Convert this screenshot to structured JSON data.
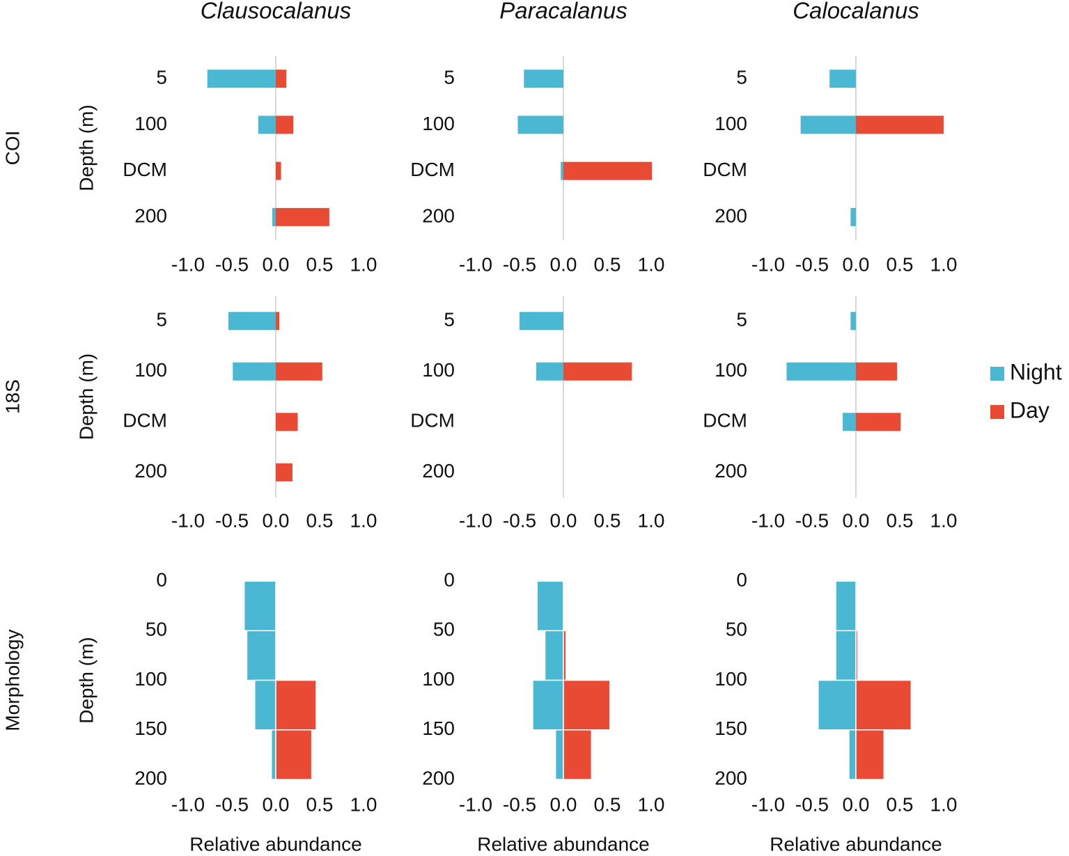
{
  "column_titles": [
    "Clausocalanus",
    "Paracalanus",
    "Calocalanus"
  ],
  "chart_data": [
    {
      "type": "bar",
      "row_label": "COI",
      "ylabel": "Depth (m)",
      "categories": [
        "5",
        "100",
        "DCM",
        "200"
      ],
      "series": [
        {
          "name": "Night",
          "color": "#4ab8d3",
          "values": [
            -0.78,
            -0.2,
            0,
            -0.04
          ]
        },
        {
          "name": "Day",
          "color": "#e84a33",
          "values": [
            0.12,
            0.2,
            0.06,
            0.61
          ]
        }
      ],
      "xlim": [
        -1,
        1
      ],
      "xticks": [
        {
          "value": -1,
          "label": "-1.0"
        },
        {
          "value": -0.5,
          "label": "-0.5"
        },
        {
          "value": 0,
          "label": "0.0"
        },
        0.5,
        {
          "value": 1,
          "label": "1.0"
        }
      ]
    },
    {
      "type": "bar",
      "categories": [
        "5",
        "100",
        "DCM",
        "200"
      ],
      "series": [
        {
          "name": "Night",
          "color": "#4ab8d3",
          "values": [
            -0.45,
            -0.52,
            -0.03,
            0
          ]
        },
        {
          "name": "Day",
          "color": "#e84a33",
          "values": [
            0,
            0,
            1.01,
            0
          ]
        }
      ],
      "xlim": [
        -1,
        1
      ],
      "xticks": [
        {
          "value": -1,
          "label": "-1.0"
        },
        {
          "value": -0.5,
          "label": "-0.5"
        },
        {
          "value": 0,
          "label": "0.0"
        },
        0.5,
        {
          "value": 1,
          "label": "1.0"
        }
      ]
    },
    {
      "type": "bar",
      "categories": [
        "5",
        "100",
        "DCM",
        "200"
      ],
      "series": [
        {
          "name": "Night",
          "color": "#4ab8d3",
          "values": [
            -0.3,
            -0.63,
            0,
            -0.06
          ]
        },
        {
          "name": "Day",
          "color": "#e84a33",
          "values": [
            0,
            1.0,
            0,
            0
          ]
        }
      ],
      "xlim": [
        -1,
        1
      ],
      "xticks": [
        {
          "value": -1,
          "label": "-1.0"
        },
        {
          "value": -0.5,
          "label": "-0.5"
        },
        {
          "value": 0,
          "label": "0.0"
        },
        0.5,
        {
          "value": 1,
          "label": "1.0"
        }
      ]
    },
    {
      "type": "bar",
      "row_label": "18S",
      "ylabel": "Depth (m)",
      "categories": [
        "5",
        "100",
        "DCM",
        "200"
      ],
      "series": [
        {
          "name": "Night",
          "color": "#4ab8d3",
          "values": [
            -0.54,
            -0.49,
            0,
            0
          ]
        },
        {
          "name": "Day",
          "color": "#e84a33",
          "values": [
            0.04,
            0.53,
            0.25,
            0.19
          ]
        }
      ],
      "xlim": [
        -1,
        1
      ],
      "xticks": [
        {
          "value": -1,
          "label": "-1.0"
        },
        {
          "value": -0.5,
          "label": "-0.5"
        },
        {
          "value": 0,
          "label": "0.0"
        },
        0.5,
        {
          "value": 1,
          "label": "1.0"
        }
      ]
    },
    {
      "type": "bar",
      "categories": [
        "5",
        "100",
        "DCM",
        "200"
      ],
      "series": [
        {
          "name": "Night",
          "color": "#4ab8d3",
          "values": [
            -0.5,
            -0.31,
            0,
            0
          ]
        },
        {
          "name": "Day",
          "color": "#e84a33",
          "values": [
            0,
            0.78,
            0,
            0
          ]
        }
      ],
      "xlim": [
        -1,
        1
      ],
      "xticks": [
        {
          "value": -1,
          "label": "-1.0"
        },
        {
          "value": -0.5,
          "label": "-0.5"
        },
        {
          "value": 0,
          "label": "0.0"
        },
        0.5,
        {
          "value": 1,
          "label": "1.0"
        }
      ]
    },
    {
      "type": "bar",
      "categories": [
        "5",
        "100",
        "DCM",
        "200"
      ],
      "series": [
        {
          "name": "Night",
          "color": "#4ab8d3",
          "values": [
            -0.06,
            -0.79,
            -0.15,
            0
          ]
        },
        {
          "name": "Day",
          "color": "#e84a33",
          "values": [
            0,
            0.47,
            0.51,
            0
          ]
        }
      ],
      "xlim": [
        -1,
        1
      ],
      "xticks": [
        {
          "value": -1,
          "label": "-1.0"
        },
        {
          "value": -0.5,
          "label": "-0.5"
        },
        {
          "value": 0,
          "label": "0.0"
        },
        0.5,
        {
          "value": 1,
          "label": "1.0"
        }
      ]
    },
    {
      "type": "histogram",
      "row_label": "Morphology",
      "ylabel": "Depth (m)",
      "xlabel": "Relative abundance",
      "bins": [
        0,
        50,
        100,
        150,
        200
      ],
      "series": [
        {
          "name": "Night",
          "color": "#4ab8d3",
          "values": [
            -0.36,
            -0.33,
            -0.24,
            -0.05
          ]
        },
        {
          "name": "Day",
          "color": "#e84a33",
          "values": [
            0.01,
            0,
            0.46,
            0.41
          ]
        }
      ],
      "ylim": [
        0,
        200
      ],
      "yticks": [
        0,
        50,
        100,
        150,
        200
      ],
      "xlim": [
        -1,
        1
      ],
      "xticks": [
        {
          "value": -1,
          "label": "-1.0"
        },
        {
          "value": -0.5,
          "label": "-0.5"
        },
        {
          "value": 0,
          "label": "0.0"
        },
        0.5,
        {
          "value": 1,
          "label": "1.0"
        }
      ]
    },
    {
      "type": "histogram",
      "xlabel": "Relative abundance",
      "bins": [
        0,
        50,
        100,
        150,
        200
      ],
      "series": [
        {
          "name": "Night",
          "color": "#4ab8d3",
          "values": [
            -0.3,
            -0.21,
            -0.35,
            -0.09
          ]
        },
        {
          "name": "Day",
          "color": "#e84a33",
          "values": [
            0.01,
            0.03,
            0.53,
            0.32
          ]
        }
      ],
      "ylim": [
        0,
        200
      ],
      "yticks": [
        0,
        50,
        100,
        150,
        200
      ],
      "xlim": [
        -1,
        1
      ],
      "xticks": [
        {
          "value": -1,
          "label": "-1.0"
        },
        {
          "value": -0.5,
          "label": "-0.5"
        },
        {
          "value": 0,
          "label": "0.0"
        },
        0.5,
        {
          "value": 1,
          "label": "1.0"
        }
      ]
    },
    {
      "type": "histogram",
      "xlabel": "Relative abundance",
      "bins": [
        0,
        50,
        100,
        150,
        200
      ],
      "series": [
        {
          "name": "Night",
          "color": "#4ab8d3",
          "values": [
            -0.23,
            -0.23,
            -0.43,
            -0.08
          ]
        },
        {
          "name": "Day",
          "color": "#e84a33",
          "values": [
            0,
            0.02,
            0.63,
            0.32
          ]
        }
      ],
      "ylim": [
        0,
        200
      ],
      "yticks": [
        0,
        50,
        100,
        150,
        200
      ],
      "xlim": [
        -1,
        1
      ],
      "xticks": [
        {
          "value": -1,
          "label": "-1.0"
        },
        {
          "value": -0.5,
          "label": "-0.5"
        },
        {
          "value": 0,
          "label": "0.0"
        },
        0.5,
        {
          "value": 1,
          "label": "1.0"
        }
      ]
    }
  ]
}
